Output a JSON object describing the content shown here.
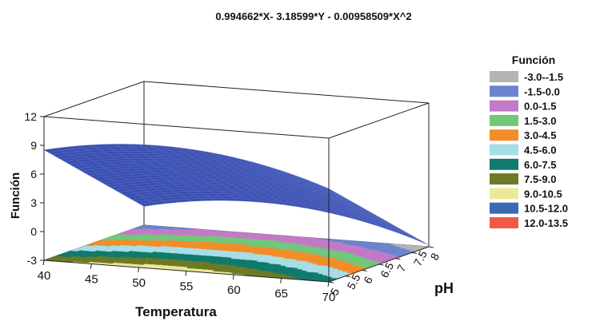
{
  "chart_data": {
    "type": "surface",
    "title": "0.994662*X- 3.18599*Y - 0.00958509*X^2",
    "equation": {
      "a_x": 0.994662,
      "b_y": -3.18599,
      "c_x2": -0.00958509
    },
    "xlabel": "Temperatura",
    "ylabel": "pH",
    "zlabel": "Función",
    "x_ticks": [
      "40",
      "45",
      "50",
      "55",
      "60",
      "65",
      "70"
    ],
    "y_ticks": [
      "5",
      "5.5",
      "6",
      "6.5",
      "7",
      "7.5",
      "8"
    ],
    "z_ticks": [
      "-3",
      "0",
      "3",
      "6",
      "9",
      "12"
    ],
    "xlim": [
      40,
      70
    ],
    "ylim": [
      5,
      8
    ],
    "zlim": [
      -3,
      12
    ],
    "surface_color": "#3b4fb2",
    "legend": {
      "title": "Función",
      "placement": "right",
      "items": [
        {
          "label": "-3.0--1.5",
          "color": "#b4b4b4"
        },
        {
          "label": "-1.5-0.0",
          "color": "#6c84cf"
        },
        {
          "label": "0.0-1.5",
          "color": "#c37ac6"
        },
        {
          "label": "1.5-3.0",
          "color": "#72c77a"
        },
        {
          "label": "3.0-4.5",
          "color": "#f28d2a"
        },
        {
          "label": "4.5-6.0",
          "color": "#a6dde6"
        },
        {
          "label": "6.0-7.5",
          "color": "#117a6c"
        },
        {
          "label": "7.5-9.0",
          "color": "#6d7a25"
        },
        {
          "label": "9.0-10.5",
          "color": "#ede79a"
        },
        {
          "label": "10.5-12.0",
          "color": "#3b6ab2"
        },
        {
          "label": "12.0-13.5",
          "color": "#f15a47"
        }
      ]
    }
  }
}
